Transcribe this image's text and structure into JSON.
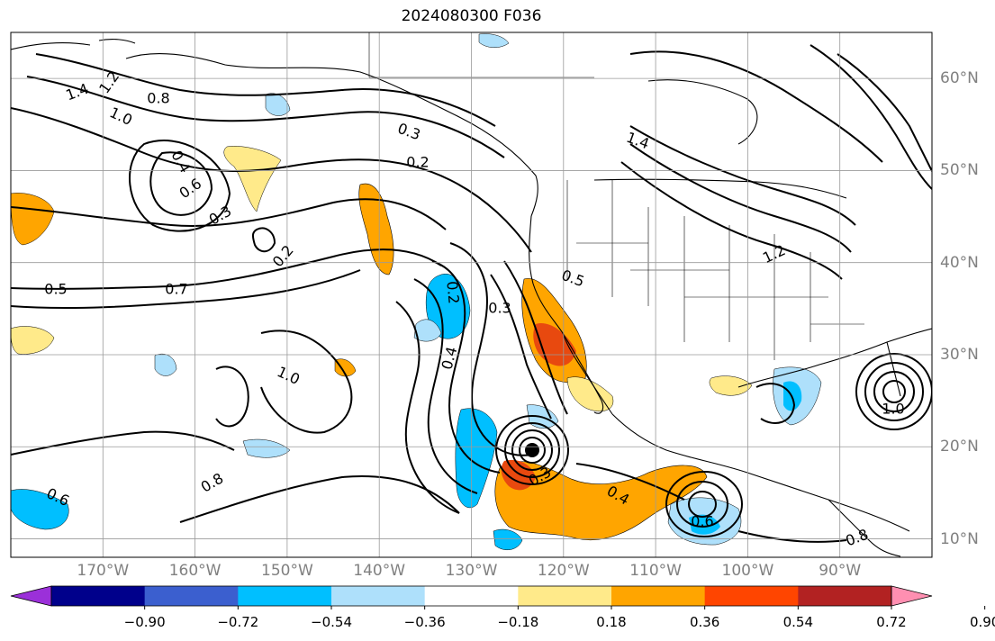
{
  "title": "2024080300 F036",
  "map": {
    "projection": "cylindrical",
    "lon_range": [
      -180,
      -80
    ],
    "lat_range": [
      8,
      65
    ],
    "lon_ticks": [
      {
        "value": -170,
        "label": "170°W"
      },
      {
        "value": -160,
        "label": "160°W"
      },
      {
        "value": -150,
        "label": "150°W"
      },
      {
        "value": -140,
        "label": "140°W"
      },
      {
        "value": -130,
        "label": "130°W"
      },
      {
        "value": -120,
        "label": "120°W"
      },
      {
        "value": -110,
        "label": "110°W"
      },
      {
        "value": -100,
        "label": "100°W"
      },
      {
        "value": -90,
        "label": "90°W"
      }
    ],
    "lat_ticks": [
      {
        "value": 10,
        "label": "10°N"
      },
      {
        "value": 20,
        "label": "20°N"
      },
      {
        "value": 30,
        "label": "30°N"
      },
      {
        "value": 40,
        "label": "40°N"
      },
      {
        "value": 50,
        "label": "50°N"
      },
      {
        "value": 60,
        "label": "60°N"
      }
    ],
    "gridlines": true,
    "contour_labels": [
      "1.4",
      "1.2",
      "1.0",
      "0.8",
      "0.6",
      "0.4",
      "0.3",
      "0.2",
      "0.5",
      "0.7",
      "1.0",
      "0.8",
      "0.6",
      "0.3",
      "0.4",
      "0.2",
      "0.5",
      "0.3",
      "0.4",
      "0.6",
      "0.3",
      "0.2"
    ],
    "shading_colors": {
      "strong_positive": "#e8490f",
      "positive": "#ffa500",
      "weak_positive": "#ffea8a",
      "weak_negative": "#aee0fb",
      "negative": "#00bfff"
    }
  },
  "colorbar": {
    "tick_labels": [
      "−0.90",
      "−0.72",
      "−0.54",
      "−0.36",
      "−0.18",
      "0.18",
      "0.36",
      "0.54",
      "0.72",
      "0.90"
    ],
    "colors": [
      "#9b30d9",
      "#00008b",
      "#3b5fcf",
      "#00bfff",
      "#aee0fb",
      "#ffffff",
      "#ffea8a",
      "#ffa500",
      "#ff4500",
      "#b22222",
      "#ff8fb1"
    ],
    "extend": "both"
  }
}
